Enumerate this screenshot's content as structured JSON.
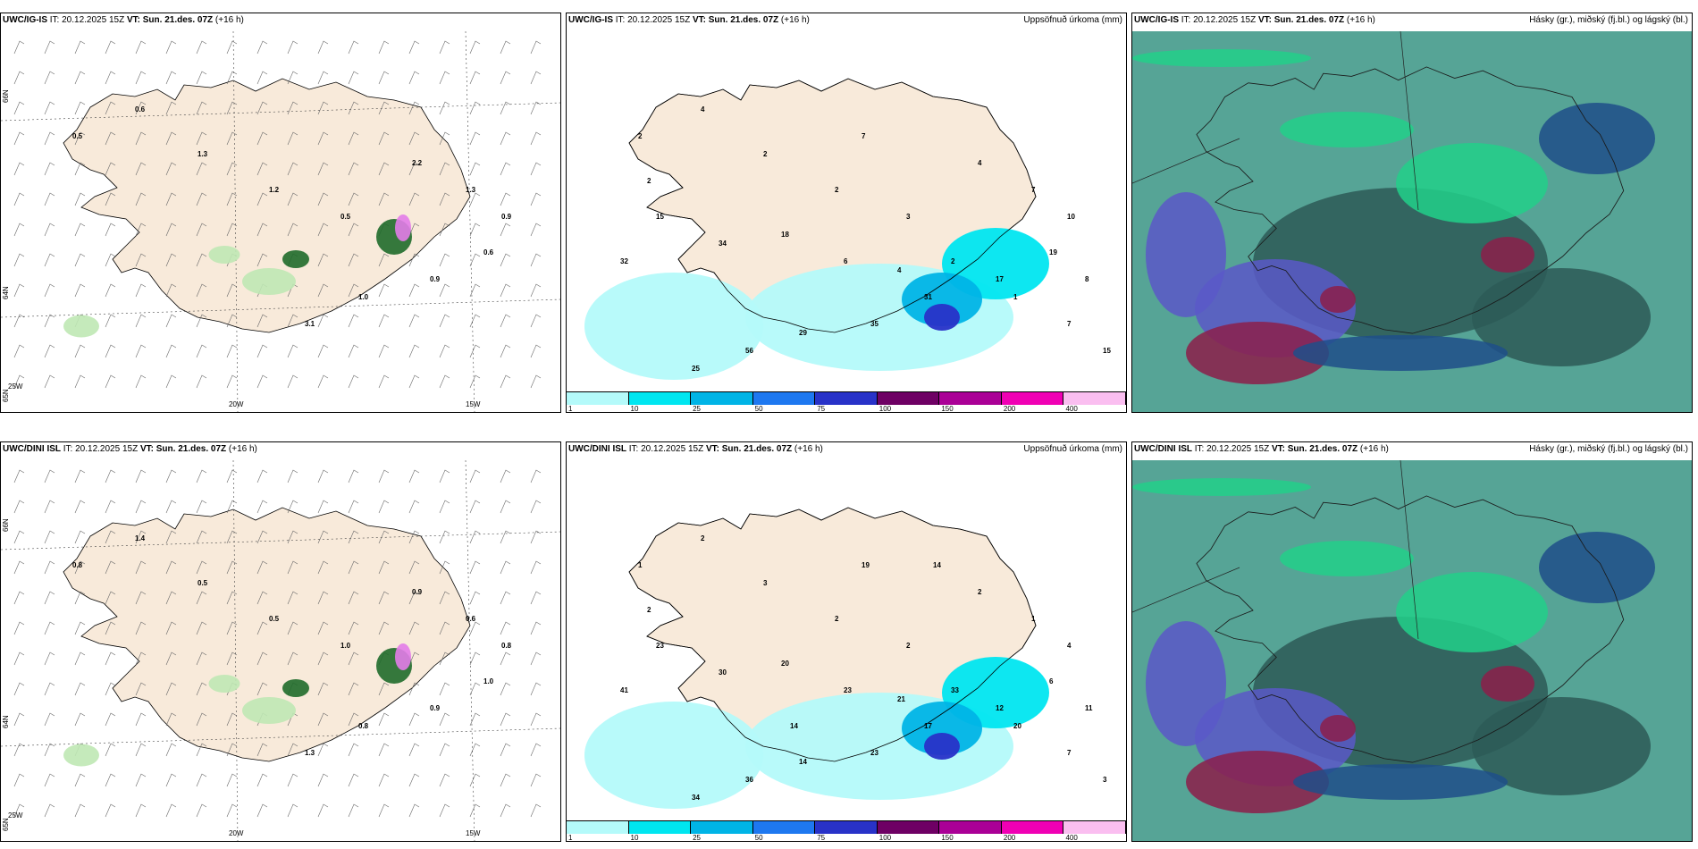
{
  "panels": [
    {
      "model": "UWC/IG-IS",
      "it_label": "IT:",
      "it_value": "20.12.2025 15Z",
      "vt_label": "VT:",
      "vt_value": "Sun. 21.des. 07Z",
      "lead": "(+16 h)",
      "right_title": "",
      "type": "wind",
      "lat_labels": [
        "66N",
        "64N",
        "65N"
      ],
      "lon_labels": [
        "20W",
        "15W",
        "25W"
      ],
      "values": [
        "0.5",
        "0.6",
        "1.3",
        "1.2",
        "0.5",
        "2.2",
        "1.3",
        "0.9",
        "0.6",
        "0.9",
        "1.0",
        "3.1"
      ]
    },
    {
      "model": "UWC/IG-IS",
      "it_label": "IT:",
      "it_value": "20.12.2025 15Z",
      "vt_label": "VT:",
      "vt_value": "Sun. 21.des. 07Z",
      "lead": "(+16 h)",
      "right_title": "Uppsöfnuð úrkoma (mm)",
      "type": "precip",
      "values": [
        "2",
        "4",
        "2",
        "2",
        "3",
        "4",
        "7",
        "10",
        "19",
        "17",
        "31",
        "35",
        "29",
        "56",
        "25",
        "32",
        "15",
        "34",
        "18",
        "6",
        "4",
        "2",
        "1",
        "8",
        "7",
        "15",
        "2",
        "7"
      ],
      "colorbar_labels": [
        "1",
        "10",
        "25",
        "50",
        "75",
        "100",
        "150",
        "200",
        "400"
      ],
      "colorbar_colors": [
        "#b4fafa",
        "#00e6f0",
        "#00b4e6",
        "#1e78f0",
        "#2832c8",
        "#6e0064",
        "#aa0096",
        "#f000b4",
        "#fabef0"
      ]
    },
    {
      "model": "UWC/IG-IS",
      "it_label": "IT:",
      "it_value": "20.12.2025 15Z",
      "vt_label": "VT:",
      "vt_value": "Sun. 21.des. 07Z",
      "lead": "(+16 h)",
      "right_title": "Hásky (gr.), miðský (fj.bl.) og lágský (bl.)",
      "type": "cloud"
    },
    {
      "model": "UWC/DINI ISL",
      "it_label": "IT:",
      "it_value": "20.12.2025 15Z",
      "vt_label": "VT:",
      "vt_value": "Sun. 21.des. 07Z",
      "lead": "(+16 h)",
      "right_title": "",
      "type": "wind",
      "lat_labels": [
        "66N",
        "64N",
        "65N"
      ],
      "lon_labels": [
        "20W",
        "15W",
        "25W"
      ],
      "values": [
        "0.8",
        "1.4",
        "0.5",
        "0.5",
        "1.0",
        "0.9",
        "0.6",
        "0.8",
        "1.0",
        "0.9",
        "0.8",
        "1.3"
      ]
    },
    {
      "model": "UWC/DINI ISL",
      "it_label": "IT:",
      "it_value": "20.12.2025 15Z",
      "vt_label": "VT:",
      "vt_value": "Sun. 21.des. 07Z",
      "lead": "(+16 h)",
      "right_title": "Uppsöfnuð úrkoma (mm)",
      "type": "precip",
      "values": [
        "1",
        "2",
        "3",
        "2",
        "2",
        "2",
        "1",
        "4",
        "6",
        "12",
        "17",
        "23",
        "14",
        "36",
        "34",
        "41",
        "23",
        "30",
        "20",
        "23",
        "21",
        "33",
        "20",
        "11",
        "7",
        "3",
        "2",
        "19",
        "14",
        "14"
      ],
      "colorbar_labels": [
        "1",
        "10",
        "25",
        "50",
        "75",
        "100",
        "150",
        "200",
        "400"
      ],
      "colorbar_colors": [
        "#b4fafa",
        "#00e6f0",
        "#00b4e6",
        "#1e78f0",
        "#2832c8",
        "#6e0064",
        "#aa0096",
        "#f000b4",
        "#fabef0"
      ]
    },
    {
      "model": "UWC/DINI ISL",
      "it_label": "IT:",
      "it_value": "20.12.2025 15Z",
      "vt_label": "VT:",
      "vt_value": "Sun. 21.des. 07Z",
      "lead": "(+16 h)",
      "right_title": "Hásky (gr.), miðský (fj.bl.) og lágský (bl.)",
      "type": "cloud"
    }
  ],
  "colors": {
    "land": "#f8eada",
    "sea": "#ffffff",
    "wind_green_light": "#bfe8b4",
    "wind_green_dark": "#1f6b2a",
    "wind_pink": "#e27ce8",
    "precip_light": "#b4fafa",
    "precip_mid": "#00b4e6",
    "precip_deep": "#2832c8",
    "cloud_teal": "#56a496",
    "cloud_dark": "#2d5a57",
    "cloud_blue": "#1e4f8a",
    "cloud_violet": "#5b58c8",
    "cloud_red": "#8c1f4a",
    "cloud_green": "#22d08a"
  }
}
